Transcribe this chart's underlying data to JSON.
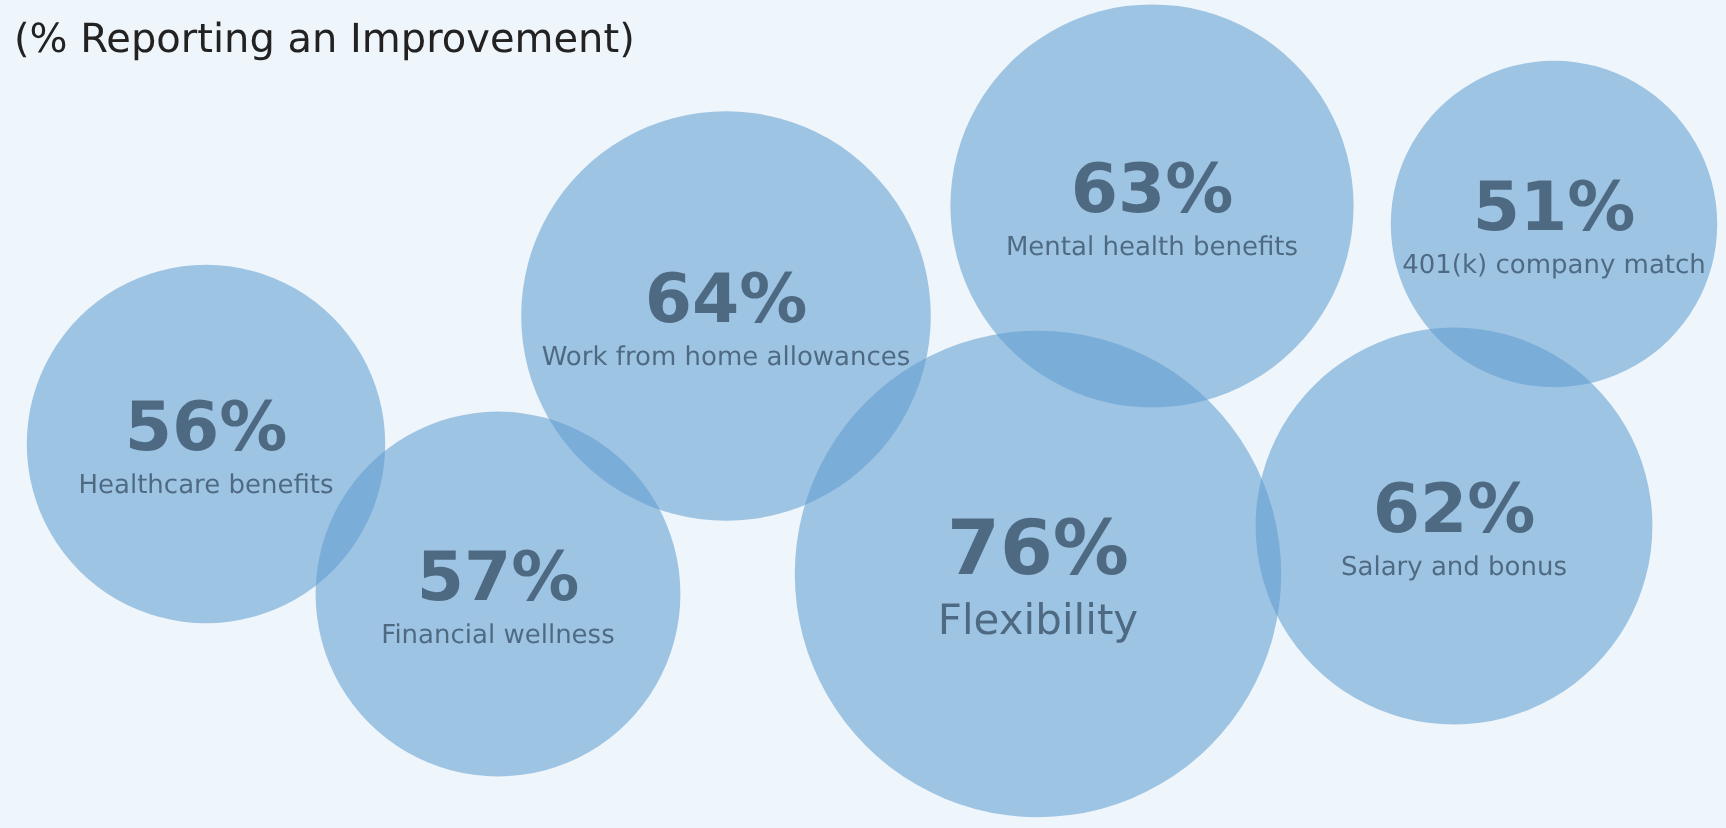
{
  "chart_data": {
    "type": "other",
    "title": "(% Reporting an Improvement)",
    "categories": [
      "Healthcare benefits",
      "Financial wellness",
      "Work from home allowances",
      "Mental health benefits",
      "401(k) company match",
      "Flexibility",
      "Salary and bonus"
    ],
    "values": [
      56,
      57,
      64,
      63,
      51,
      76,
      62
    ],
    "value_labels": [
      "56%",
      "57%",
      "64%",
      "63%",
      "51%",
      "76%",
      "62%"
    ],
    "color": "#5d9bd0"
  }
}
